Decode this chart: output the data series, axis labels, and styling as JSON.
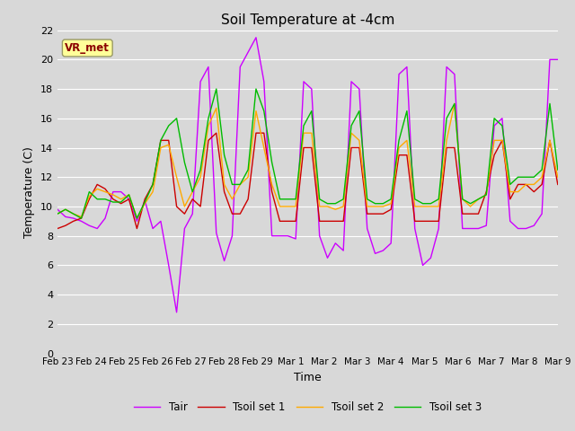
{
  "title": "Soil Temperature at -4cm",
  "xlabel": "Time",
  "ylabel": "Temperature (C)",
  "ylim": [
    0,
    22
  ],
  "annotation": "VR_met",
  "x_tick_labels": [
    "Feb 23",
    "Feb 24",
    "Feb 25",
    "Feb 26",
    "Feb 27",
    "Feb 28",
    "Feb 29",
    "Mar 1",
    "Mar 2",
    "Mar 3",
    "Mar 4",
    "Mar 5",
    "Mar 6",
    "Mar 7",
    "Mar 8",
    "Mar 9"
  ],
  "background_color": "#d8d8d8",
  "plot_bg_color": "#d8d8d8",
  "grid_color": "#ffffff",
  "colors": {
    "Tair": "#cc00ff",
    "Tsoil_set1": "#cc0000",
    "Tsoil_set2": "#ffaa00",
    "Tsoil_set3": "#00bb00"
  },
  "legend_labels": [
    "Tair",
    "Tsoil set 1",
    "Tsoil set 2",
    "Tsoil set 3"
  ],
  "Tair": [
    9.8,
    9.3,
    9.2,
    9.0,
    8.7,
    8.5,
    9.2,
    11.0,
    11.0,
    10.5,
    9.0,
    10.4,
    8.5,
    9.0,
    6.0,
    2.8,
    8.5,
    9.5,
    18.5,
    19.5,
    8.2,
    6.3,
    8.0,
    19.5,
    20.5,
    21.5,
    18.5,
    8.0,
    8.0,
    8.0,
    7.8,
    18.5,
    18.0,
    8.0,
    6.5,
    7.5,
    7.0,
    18.5,
    18.0,
    8.5,
    6.8,
    7.0,
    7.5,
    19.0,
    19.5,
    8.5,
    6.0,
    6.5,
    8.5,
    19.5,
    19.0,
    8.5,
    8.5,
    8.5,
    8.7,
    15.5,
    16.0,
    9.0,
    8.5,
    8.5,
    8.7,
    9.5,
    20.0,
    20.0
  ],
  "Tsoil_set1": [
    8.5,
    8.7,
    9.0,
    9.2,
    10.5,
    11.5,
    11.2,
    10.5,
    10.2,
    10.5,
    8.5,
    10.5,
    11.5,
    14.5,
    14.5,
    10.0,
    9.5,
    10.5,
    10.0,
    14.5,
    15.0,
    11.0,
    9.5,
    9.5,
    10.5,
    15.0,
    15.0,
    11.0,
    9.0,
    9.0,
    9.0,
    14.0,
    14.0,
    9.0,
    9.0,
    9.0,
    9.0,
    14.0,
    14.0,
    9.5,
    9.5,
    9.5,
    9.8,
    13.5,
    13.5,
    9.0,
    9.0,
    9.0,
    9.0,
    14.0,
    14.0,
    9.5,
    9.5,
    9.5,
    11.0,
    13.5,
    14.5,
    10.5,
    11.5,
    11.5,
    11.0,
    11.5,
    14.5,
    11.5
  ],
  "Tsoil_set2": [
    9.5,
    9.8,
    9.5,
    9.3,
    10.7,
    11.2,
    11.0,
    10.8,
    10.5,
    10.8,
    9.2,
    10.2,
    11.0,
    14.0,
    14.2,
    12.0,
    10.0,
    11.0,
    12.0,
    15.5,
    16.7,
    11.5,
    10.5,
    11.5,
    12.0,
    16.5,
    14.0,
    11.5,
    10.0,
    10.0,
    10.0,
    15.0,
    15.0,
    10.0,
    10.0,
    9.8,
    10.0,
    15.0,
    14.5,
    10.0,
    10.0,
    10.0,
    10.2,
    14.0,
    14.5,
    10.0,
    10.0,
    10.0,
    10.0,
    14.5,
    17.0,
    10.5,
    10.0,
    10.5,
    10.8,
    14.5,
    14.5,
    11.0,
    11.0,
    11.5,
    11.5,
    12.0,
    14.5,
    12.0
  ],
  "Tsoil_set3": [
    9.5,
    9.8,
    9.5,
    9.2,
    11.0,
    10.5,
    10.5,
    10.3,
    10.3,
    10.8,
    9.2,
    10.3,
    11.5,
    14.5,
    15.5,
    16.0,
    13.0,
    11.0,
    12.5,
    16.0,
    18.0,
    13.5,
    11.5,
    11.5,
    12.5,
    18.0,
    16.5,
    13.0,
    10.5,
    10.5,
    10.5,
    15.5,
    16.5,
    10.5,
    10.2,
    10.2,
    10.5,
    15.5,
    16.5,
    10.5,
    10.2,
    10.2,
    10.5,
    14.5,
    16.5,
    10.5,
    10.2,
    10.2,
    10.5,
    16.0,
    17.0,
    10.5,
    10.2,
    10.5,
    10.8,
    16.0,
    15.5,
    11.5,
    12.0,
    12.0,
    12.0,
    12.5,
    17.0,
    12.5
  ]
}
